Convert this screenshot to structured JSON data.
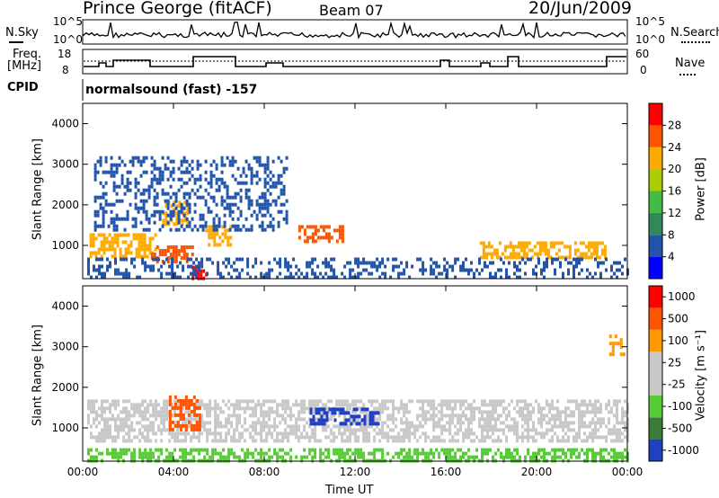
{
  "header": {
    "station": "Prince George (fitACF)",
    "beam": "Beam 07",
    "date": "20/Jun/2009"
  },
  "top_panels": {
    "nsky_label": "N.Sky",
    "nsearch_label": "N.Search",
    "noise_ticks": [
      "10^5",
      "10^0"
    ],
    "freq_label_1": "Freq.",
    "freq_label_2": "[MHz]",
    "freq_ticks": [
      "18",
      "8"
    ],
    "nave_label": "Nave",
    "nave_ticks": [
      "60",
      "0"
    ],
    "cpid_label": "CPID",
    "cpid_text": "normalsound (fast) -157"
  },
  "colors": {
    "power": [
      "#0000ff",
      "#2255aa",
      "#2e8b57",
      "#44bb44",
      "#aacc00",
      "#ffaa00",
      "#ff5500",
      "#ff0000"
    ],
    "velocity": [
      "#2040c0",
      "#3a7a3a",
      "#55cc33",
      "#c8c8c8",
      "#c8c8c8",
      "#ff9900",
      "#ff5500",
      "#ff0000"
    ]
  },
  "chart_data": [
    {
      "type": "heatmap",
      "name": "power",
      "ylabel": "Slant Range [km]",
      "xlabel": "",
      "x_ticks": [
        "00:00",
        "04:00",
        "08:00",
        "12:00",
        "16:00",
        "20:00",
        "00:00"
      ],
      "xlim_hours": [
        0,
        24
      ],
      "ylim_km": [
        180,
        4500
      ],
      "y_ticks": [
        1000,
        2000,
        3000,
        4000
      ],
      "colorbar": {
        "label": "Power [dB]",
        "ticks": [
          "4",
          "8",
          "12",
          "16",
          "20",
          "24",
          "28"
        ]
      },
      "regions": [
        {
          "t": [
            0.3,
            3.2
          ],
          "r": [
            700,
            1300
          ],
          "level": 5
        },
        {
          "t": [
            3.0,
            4.8
          ],
          "r": [
            600,
            1000
          ],
          "level": 6
        },
        {
          "t": [
            3.5,
            4.6
          ],
          "r": [
            1500,
            2100
          ],
          "level": 5
        },
        {
          "t": [
            4.8,
            5.5
          ],
          "r": [
            180,
            500
          ],
          "level": 7
        },
        {
          "t": [
            5.4,
            6.5
          ],
          "r": [
            1000,
            1500
          ],
          "level": 5
        },
        {
          "t": [
            9.5,
            11.5
          ],
          "r": [
            1100,
            1500
          ],
          "level": 6
        },
        {
          "t": [
            17.5,
            23.0
          ],
          "r": [
            700,
            1100
          ],
          "level": 5
        },
        {
          "t": [
            0.2,
            24.0
          ],
          "r": [
            180,
            700
          ],
          "level": 1
        },
        {
          "t": [
            0.5,
            9.0
          ],
          "r": [
            1400,
            3200
          ],
          "level": 1
        }
      ]
    },
    {
      "type": "heatmap",
      "name": "velocity",
      "ylabel": "Slant Range [km]",
      "xlabel": "Time UT",
      "x_ticks": [
        "00:00",
        "04:00",
        "08:00",
        "12:00",
        "16:00",
        "20:00",
        "00:00"
      ],
      "xlim_hours": [
        0,
        24
      ],
      "ylim_km": [
        180,
        4500
      ],
      "y_ticks": [
        1000,
        2000,
        3000,
        4000
      ],
      "colorbar": {
        "label": "Velocity [m s⁻¹]",
        "ticks": [
          "1000",
          "500",
          "100",
          "25",
          "-25",
          "-100",
          "-500",
          "-1000"
        ]
      },
      "regions": [
        {
          "t": [
            0.2,
            24.0
          ],
          "r": [
            700,
            1700
          ],
          "level": 3
        },
        {
          "t": [
            3.8,
            5.2
          ],
          "r": [
            1000,
            1800
          ],
          "level": 6
        },
        {
          "t": [
            10.0,
            13.0
          ],
          "r": [
            1100,
            1500
          ],
          "level": 0
        },
        {
          "t": [
            23.2,
            23.9
          ],
          "r": [
            2800,
            3300
          ],
          "level": 5
        },
        {
          "t": [
            0.2,
            24.0
          ],
          "r": [
            180,
            500
          ],
          "level": 2
        }
      ]
    }
  ]
}
